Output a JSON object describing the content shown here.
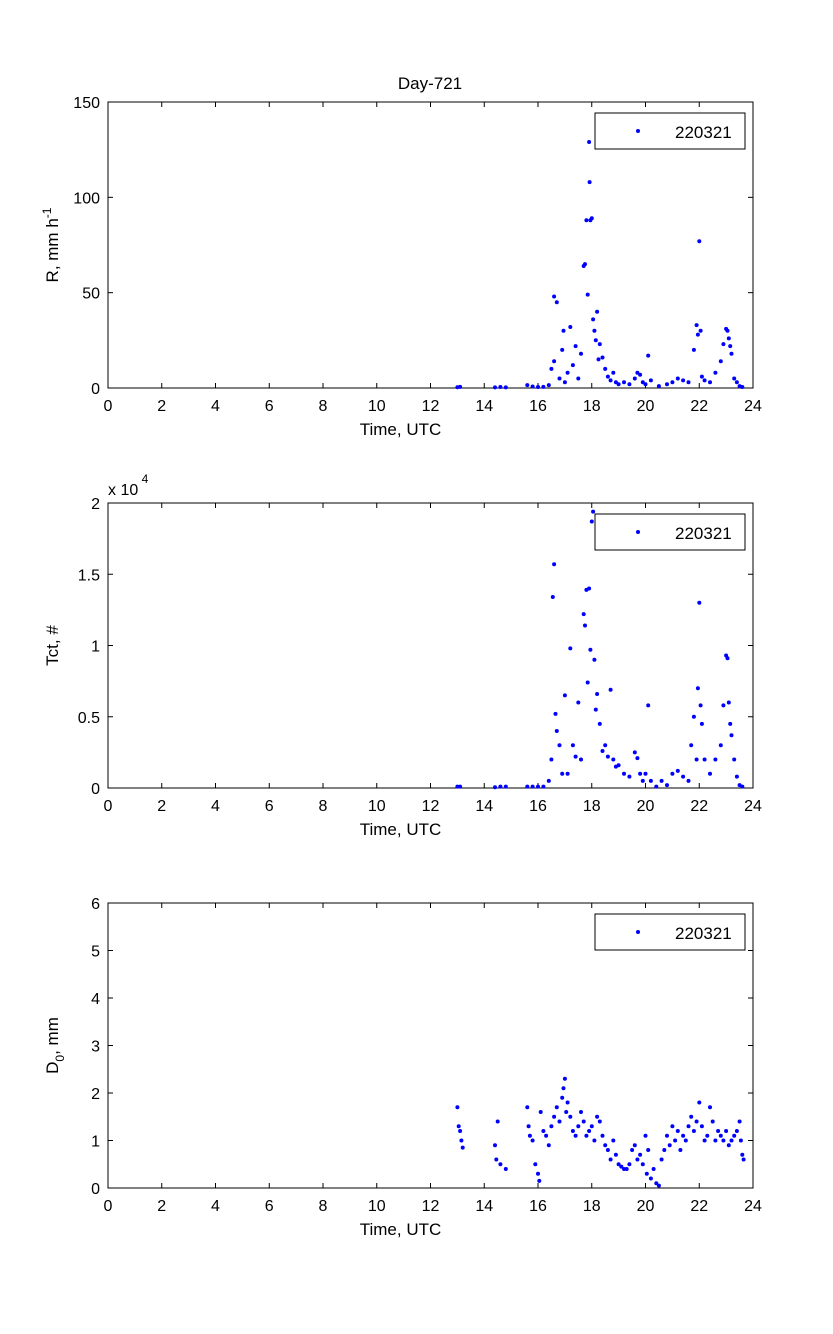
{
  "figure": {
    "title": "Day-721"
  },
  "chart_data": [
    {
      "type": "scatter",
      "ylabel": "R, mm h",
      "ylabel_superscript": "-1",
      "xlabel": "Time, UTC",
      "xlim": [
        0,
        24
      ],
      "ylim": [
        0,
        150
      ],
      "xticks": [
        0,
        2,
        4,
        6,
        8,
        10,
        12,
        14,
        16,
        18,
        20,
        22,
        24
      ],
      "yticks": [
        0,
        50,
        100,
        150
      ],
      "legend": {
        "entries": [
          "220321"
        ],
        "placement": "top-right"
      },
      "marker_color": "#0000ff",
      "series": [
        {
          "name": "220321",
          "points": [
            [
              13.0,
              0.4
            ],
            [
              13.1,
              0.6
            ],
            [
              14.4,
              0.3
            ],
            [
              14.6,
              0.5
            ],
            [
              14.8,
              0.3
            ],
            [
              15.6,
              1.5
            ],
            [
              15.8,
              0.8
            ],
            [
              16.0,
              0.5
            ],
            [
              16.2,
              0.6
            ],
            [
              16.4,
              1.5
            ],
            [
              16.5,
              10
            ],
            [
              16.6,
              14
            ],
            [
              16.6,
              48
            ],
            [
              16.7,
              45
            ],
            [
              16.8,
              5
            ],
            [
              16.9,
              20
            ],
            [
              16.95,
              30
            ],
            [
              17.0,
              3
            ],
            [
              17.1,
              8
            ],
            [
              17.2,
              32
            ],
            [
              17.3,
              12
            ],
            [
              17.4,
              22
            ],
            [
              17.5,
              5
            ],
            [
              17.6,
              18
            ],
            [
              17.7,
              64
            ],
            [
              17.75,
              65
            ],
            [
              17.8,
              88
            ],
            [
              17.85,
              49
            ],
            [
              17.9,
              129
            ],
            [
              17.92,
              108
            ],
            [
              17.95,
              88
            ],
            [
              18.0,
              89
            ],
            [
              18.05,
              36
            ],
            [
              18.1,
              30
            ],
            [
              18.15,
              25
            ],
            [
              18.2,
              40
            ],
            [
              18.25,
              15
            ],
            [
              18.3,
              23
            ],
            [
              18.4,
              16
            ],
            [
              18.5,
              10
            ],
            [
              18.6,
              6
            ],
            [
              18.7,
              4
            ],
            [
              18.8,
              8
            ],
            [
              18.9,
              3
            ],
            [
              19.0,
              2
            ],
            [
              19.2,
              3
            ],
            [
              19.4,
              2
            ],
            [
              19.6,
              5
            ],
            [
              19.7,
              8
            ],
            [
              19.8,
              7
            ],
            [
              19.9,
              3
            ],
            [
              20.0,
              2
            ],
            [
              20.1,
              17
            ],
            [
              20.2,
              4
            ],
            [
              20.5,
              1
            ],
            [
              20.8,
              2
            ],
            [
              21.0,
              3
            ],
            [
              21.2,
              5
            ],
            [
              21.4,
              4
            ],
            [
              21.6,
              3
            ],
            [
              21.8,
              20
            ],
            [
              21.9,
              33
            ],
            [
              21.95,
              28
            ],
            [
              22.0,
              77
            ],
            [
              22.05,
              30
            ],
            [
              22.1,
              6
            ],
            [
              22.2,
              4
            ],
            [
              22.4,
              3
            ],
            [
              22.6,
              8
            ],
            [
              22.8,
              14
            ],
            [
              22.9,
              23
            ],
            [
              23.0,
              31
            ],
            [
              23.05,
              30
            ],
            [
              23.1,
              26
            ],
            [
              23.15,
              22
            ],
            [
              23.2,
              18
            ],
            [
              23.3,
              5
            ],
            [
              23.4,
              3
            ],
            [
              23.5,
              1
            ],
            [
              23.6,
              0.5
            ]
          ]
        }
      ]
    },
    {
      "type": "scatter",
      "ylabel": "Tct, #",
      "xlabel": "Time, UTC",
      "xlim": [
        0,
        24
      ],
      "ylim": [
        0,
        2
      ],
      "y_multiplier_label": "x 10",
      "y_multiplier_exponent": "4",
      "xticks": [
        0,
        2,
        4,
        6,
        8,
        10,
        12,
        14,
        16,
        18,
        20,
        22,
        24
      ],
      "yticks": [
        0,
        0.5,
        1,
        1.5,
        2
      ],
      "yticklabels": [
        "0",
        "0.5",
        "1",
        "1.5",
        "2"
      ],
      "legend": {
        "entries": [
          "220321"
        ],
        "placement": "top-right"
      },
      "marker_color": "#0000ff",
      "series": [
        {
          "name": "220321",
          "points": [
            [
              13.0,
              0.01
            ],
            [
              13.1,
              0.01
            ],
            [
              14.4,
              0.005
            ],
            [
              14.6,
              0.01
            ],
            [
              14.8,
              0.01
            ],
            [
              15.6,
              0.01
            ],
            [
              15.8,
              0.01
            ],
            [
              16.0,
              0.01
            ],
            [
              16.2,
              0.01
            ],
            [
              16.4,
              0.05
            ],
            [
              16.5,
              0.2
            ],
            [
              16.55,
              1.34
            ],
            [
              16.6,
              1.57
            ],
            [
              16.65,
              0.52
            ],
            [
              16.7,
              0.4
            ],
            [
              16.8,
              0.3
            ],
            [
              16.9,
              0.1
            ],
            [
              17.0,
              0.65
            ],
            [
              17.1,
              0.1
            ],
            [
              17.2,
              0.98
            ],
            [
              17.3,
              0.3
            ],
            [
              17.4,
              0.22
            ],
            [
              17.5,
              0.6
            ],
            [
              17.6,
              0.2
            ],
            [
              17.7,
              1.22
            ],
            [
              17.75,
              1.14
            ],
            [
              17.8,
              1.39
            ],
            [
              17.85,
              0.74
            ],
            [
              17.9,
              1.4
            ],
            [
              17.95,
              0.97
            ],
            [
              18.0,
              1.87
            ],
            [
              18.05,
              1.94
            ],
            [
              18.1,
              0.9
            ],
            [
              18.15,
              0.55
            ],
            [
              18.2,
              0.66
            ],
            [
              18.3,
              0.45
            ],
            [
              18.4,
              0.26
            ],
            [
              18.5,
              0.3
            ],
            [
              18.6,
              0.22
            ],
            [
              18.7,
              0.69
            ],
            [
              18.8,
              0.2
            ],
            [
              18.9,
              0.15
            ],
            [
              19.0,
              0.16
            ],
            [
              19.2,
              0.1
            ],
            [
              19.4,
              0.08
            ],
            [
              19.6,
              0.25
            ],
            [
              19.7,
              0.21
            ],
            [
              19.8,
              0.1
            ],
            [
              19.9,
              0.05
            ],
            [
              20.0,
              0.1
            ],
            [
              20.1,
              0.58
            ],
            [
              20.2,
              0.05
            ],
            [
              20.4,
              0.01
            ],
            [
              20.6,
              0.05
            ],
            [
              20.8,
              0.02
            ],
            [
              21.0,
              0.1
            ],
            [
              21.2,
              0.12
            ],
            [
              21.4,
              0.08
            ],
            [
              21.6,
              0.05
            ],
            [
              21.7,
              0.3
            ],
            [
              21.8,
              0.5
            ],
            [
              21.9,
              0.2
            ],
            [
              21.95,
              0.7
            ],
            [
              22.0,
              1.3
            ],
            [
              22.05,
              0.58
            ],
            [
              22.1,
              0.45
            ],
            [
              22.2,
              0.2
            ],
            [
              22.4,
              0.1
            ],
            [
              22.6,
              0.2
            ],
            [
              22.8,
              0.3
            ],
            [
              22.9,
              0.58
            ],
            [
              23.0,
              0.93
            ],
            [
              23.05,
              0.91
            ],
            [
              23.1,
              0.6
            ],
            [
              23.15,
              0.45
            ],
            [
              23.2,
              0.37
            ],
            [
              23.3,
              0.2
            ],
            [
              23.4,
              0.08
            ],
            [
              23.5,
              0.02
            ],
            [
              23.6,
              0.01
            ]
          ]
        }
      ]
    },
    {
      "type": "scatter",
      "ylabel": "D",
      "ylabel_subscript": "0",
      "ylabel_suffix": ", mm",
      "xlabel": "Time, UTC",
      "xlim": [
        0,
        24
      ],
      "ylim": [
        0,
        6
      ],
      "xticks": [
        0,
        2,
        4,
        6,
        8,
        10,
        12,
        14,
        16,
        18,
        20,
        22,
        24
      ],
      "yticks": [
        0,
        1,
        2,
        3,
        4,
        5,
        6
      ],
      "legend": {
        "entries": [
          "220321"
        ],
        "placement": "top-right"
      },
      "marker_color": "#0000ff",
      "series": [
        {
          "name": "220321",
          "points": [
            [
              13.0,
              1.7
            ],
            [
              13.05,
              1.3
            ],
            [
              13.1,
              1.2
            ],
            [
              13.15,
              1.0
            ],
            [
              13.2,
              0.85
            ],
            [
              14.4,
              0.9
            ],
            [
              14.45,
              0.6
            ],
            [
              14.5,
              1.4
            ],
            [
              14.6,
              0.5
            ],
            [
              14.8,
              0.4
            ],
            [
              15.6,
              1.7
            ],
            [
              15.65,
              1.3
            ],
            [
              15.7,
              1.1
            ],
            [
              15.8,
              1.0
            ],
            [
              15.9,
              0.5
            ],
            [
              16.0,
              0.3
            ],
            [
              16.05,
              0.15
            ],
            [
              16.1,
              1.6
            ],
            [
              16.2,
              1.2
            ],
            [
              16.3,
              1.1
            ],
            [
              16.4,
              0.9
            ],
            [
              16.5,
              1.3
            ],
            [
              16.6,
              1.5
            ],
            [
              16.7,
              1.7
            ],
            [
              16.8,
              1.4
            ],
            [
              16.9,
              1.9
            ],
            [
              16.95,
              2.1
            ],
            [
              17.0,
              2.3
            ],
            [
              17.05,
              1.6
            ],
            [
              17.1,
              1.8
            ],
            [
              17.2,
              1.5
            ],
            [
              17.3,
              1.2
            ],
            [
              17.4,
              1.1
            ],
            [
              17.5,
              1.3
            ],
            [
              17.6,
              1.6
            ],
            [
              17.7,
              1.4
            ],
            [
              17.8,
              1.1
            ],
            [
              17.9,
              1.2
            ],
            [
              18.0,
              1.3
            ],
            [
              18.1,
              1.0
            ],
            [
              18.2,
              1.5
            ],
            [
              18.3,
              1.4
            ],
            [
              18.4,
              1.1
            ],
            [
              18.5,
              0.9
            ],
            [
              18.6,
              0.8
            ],
            [
              18.7,
              0.6
            ],
            [
              18.8,
              1.0
            ],
            [
              18.9,
              0.7
            ],
            [
              19.0,
              0.5
            ],
            [
              19.1,
              0.45
            ],
            [
              19.2,
              0.4
            ],
            [
              19.3,
              0.4
            ],
            [
              19.4,
              0.5
            ],
            [
              19.5,
              0.8
            ],
            [
              19.6,
              0.9
            ],
            [
              19.7,
              0.6
            ],
            [
              19.8,
              0.7
            ],
            [
              19.9,
              0.5
            ],
            [
              20.0,
              1.1
            ],
            [
              20.05,
              0.3
            ],
            [
              20.1,
              0.8
            ],
            [
              20.2,
              0.2
            ],
            [
              20.3,
              0.4
            ],
            [
              20.4,
              0.1
            ],
            [
              20.5,
              0.05
            ],
            [
              20.6,
              0.6
            ],
            [
              20.7,
              0.8
            ],
            [
              20.8,
              1.1
            ],
            [
              20.9,
              0.9
            ],
            [
              21.0,
              1.3
            ],
            [
              21.1,
              1.0
            ],
            [
              21.2,
              1.2
            ],
            [
              21.3,
              0.8
            ],
            [
              21.4,
              1.1
            ],
            [
              21.5,
              1.0
            ],
            [
              21.6,
              1.3
            ],
            [
              21.7,
              1.5
            ],
            [
              21.8,
              1.2
            ],
            [
              21.9,
              1.4
            ],
            [
              22.0,
              1.8
            ],
            [
              22.1,
              1.3
            ],
            [
              22.2,
              1.0
            ],
            [
              22.3,
              1.1
            ],
            [
              22.4,
              1.7
            ],
            [
              22.5,
              1.4
            ],
            [
              22.6,
              1.0
            ],
            [
              22.7,
              1.2
            ],
            [
              22.8,
              1.1
            ],
            [
              22.9,
              1.0
            ],
            [
              23.0,
              1.2
            ],
            [
              23.1,
              0.9
            ],
            [
              23.2,
              1.0
            ],
            [
              23.3,
              1.1
            ],
            [
              23.4,
              1.2
            ],
            [
              23.5,
              1.4
            ],
            [
              23.55,
              1.0
            ],
            [
              23.6,
              0.7
            ],
            [
              23.65,
              0.6
            ]
          ]
        }
      ]
    }
  ]
}
